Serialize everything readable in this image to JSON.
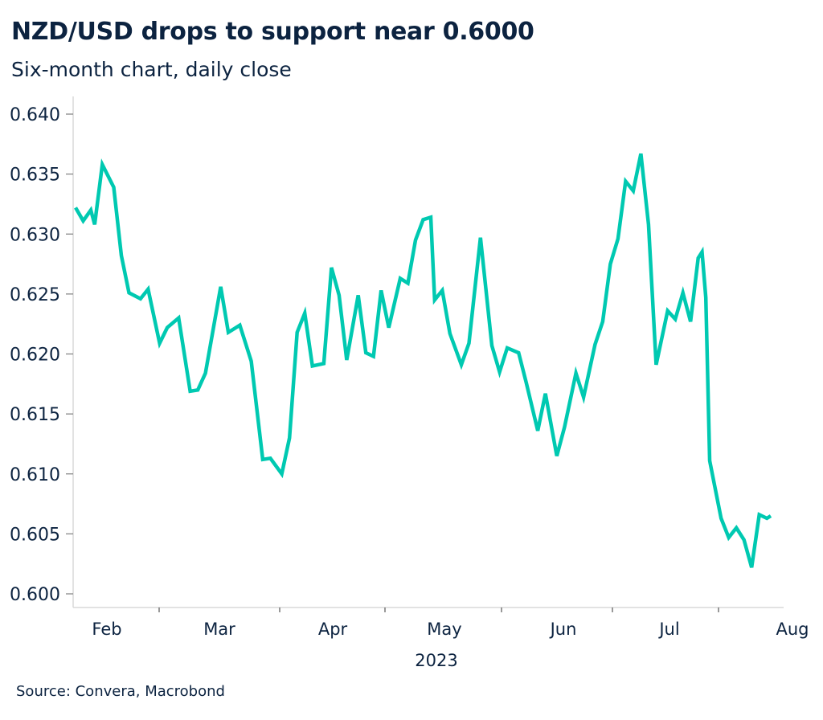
{
  "header": {
    "title": "NZD/USD drops to support near 0.6000",
    "subtitle": "Six-month chart, daily close"
  },
  "footer": {
    "source": "Source: Convera, Macrobond"
  },
  "colors": {
    "line": "#00c9b1",
    "text": "#0c2340",
    "axis": "#d9d9d9",
    "tick": "#7f7f7f"
  },
  "chart_data": {
    "type": "line",
    "title": "NZD/USD drops to support near 0.6000",
    "subtitle": "Six-month chart, daily close",
    "xlabel": "2023",
    "ylabel": "",
    "ylim": [
      0.598,
      0.641
    ],
    "yticks": [
      "0.640",
      "0.635",
      "0.630",
      "0.625",
      "0.620",
      "0.615",
      "0.610",
      "0.605",
      "0.600"
    ],
    "ytick_values": [
      0.64,
      0.635,
      0.63,
      0.625,
      0.62,
      0.615,
      0.61,
      0.605,
      0.6
    ],
    "xticks": [
      "Feb",
      "Mar",
      "Apr",
      "May",
      "Jun",
      "Jul",
      "Aug"
    ],
    "x_year_label": "2023",
    "grid": false,
    "legend": "none",
    "x_range_days": [
      0,
      183
    ],
    "month_boundaries_days": [
      16,
      44,
      75,
      105,
      136,
      166
    ],
    "series": [
      {
        "name": "NZD/USD",
        "x_days": [
          1,
          3,
          5,
          6,
          8,
          11,
          13,
          15,
          18,
          20,
          23,
          25,
          28,
          31,
          33,
          35,
          39,
          41,
          44,
          47,
          50,
          52,
          55,
          57,
          59,
          61,
          63,
          66,
          68,
          70,
          72,
          75,
          77,
          79,
          81,
          83,
          86,
          88,
          90,
          92,
          94,
          95,
          97,
          99,
          102,
          104,
          107,
          110,
          112,
          114,
          117,
          119,
          122,
          124,
          127,
          129,
          132,
          134,
          137,
          139,
          141,
          143,
          145,
          147,
          149,
          151,
          153,
          156,
          158,
          160,
          162,
          164,
          165,
          166,
          167,
          170,
          172,
          174,
          176,
          178,
          180,
          182,
          183
        ],
        "values": [
          0.6322,
          0.6311,
          0.632,
          0.6308,
          0.6358,
          0.6339,
          0.6282,
          0.6251,
          0.6246,
          0.6254,
          0.6209,
          0.6222,
          0.623,
          0.6169,
          0.617,
          0.6184,
          0.6256,
          0.6218,
          0.6224,
          0.6194,
          0.6112,
          0.6113,
          0.61,
          0.613,
          0.6218,
          0.6234,
          0.619,
          0.6192,
          0.6272,
          0.6249,
          0.6195,
          0.6249,
          0.6201,
          0.6198,
          0.6253,
          0.6222,
          0.6263,
          0.6259,
          0.6295,
          0.6312,
          0.6314,
          0.6245,
          0.6253,
          0.6217,
          0.6191,
          0.6209,
          0.6297,
          0.6207,
          0.6185,
          0.6205,
          0.6201,
          0.6176,
          0.6136,
          0.6167,
          0.6115,
          0.6139,
          0.6184,
          0.6164,
          0.6208,
          0.6227,
          0.6275,
          0.6296,
          0.6344,
          0.6336,
          0.6367,
          0.6308,
          0.6191,
          0.6236,
          0.6229,
          0.6251,
          0.6227,
          0.628,
          0.6285,
          0.6247,
          0.6111,
          0.6063,
          0.6047,
          0.6055,
          0.6045,
          0.6022,
          0.6066,
          0.6063,
          0.6065
        ]
      }
    ]
  }
}
